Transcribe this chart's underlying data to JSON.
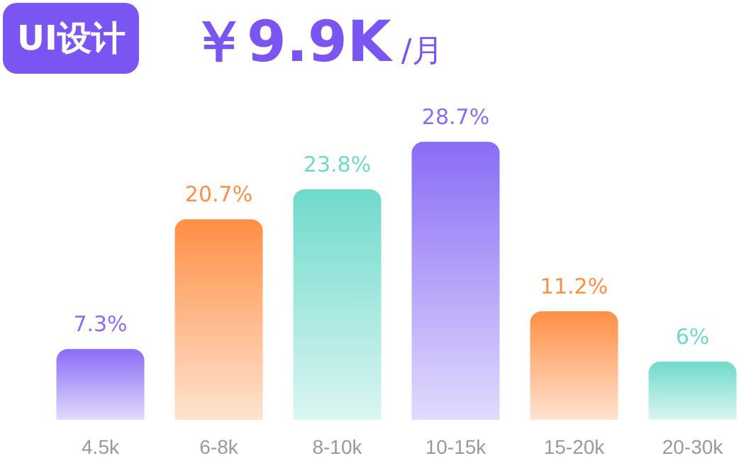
{
  "chart_data": {
    "type": "bar",
    "title": "UI设计",
    "subtitle": "￥9.9K /月",
    "categories": [
      "4.5k",
      "6-8k",
      "8-10k",
      "10-15k",
      "15-20k",
      "20-30k"
    ],
    "values": [
      7.3,
      20.7,
      23.8,
      28.7,
      11.2,
      6
    ],
    "value_labels": [
      "7.3%",
      "20.7%",
      "23.8%",
      "28.7%",
      "11.2%",
      "6%"
    ],
    "colors": [
      "#8a6cf6",
      "#ff8f45",
      "#6fdacb",
      "#8a6cf6",
      "#ff8f45",
      "#6fdacb"
    ],
    "tick_labels": "x"
  }
}
